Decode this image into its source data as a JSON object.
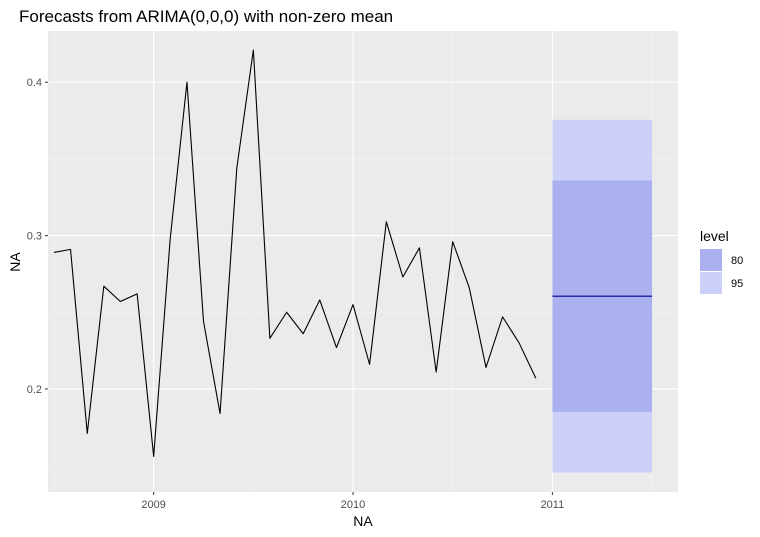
{
  "chart_data": {
    "type": "line",
    "title": "Forecasts from ARIMA(0,0,0) with non-zero mean",
    "xlabel": "NA",
    "ylabel": "NA",
    "xlim": [
      2008.47,
      2011.63
    ],
    "ylim": [
      0.1328,
      0.4334
    ],
    "grid": true,
    "legend_position": "right",
    "x_ticks": [
      2009,
      2010,
      2011
    ],
    "x_tick_labels": [
      "2009",
      "2010",
      "2011"
    ],
    "y_ticks": [
      0.2,
      0.3,
      0.4
    ],
    "y_tick_labels": [
      "0.2",
      "0.3",
      "0.4"
    ],
    "series": [
      {
        "x": [
          2008.5,
          2008.583,
          2008.667,
          2008.75,
          2008.833,
          2008.917,
          2009.0,
          2009.083,
          2009.167,
          2009.25,
          2009.333,
          2009.417,
          2009.5,
          2009.583,
          2009.667,
          2009.75,
          2009.833,
          2009.917,
          2010.0,
          2010.083,
          2010.167,
          2010.25,
          2010.333,
          2010.417,
          2010.5,
          2010.583,
          2010.667,
          2010.75,
          2010.833,
          2010.917
        ],
        "values": [
          0.289,
          0.291,
          0.171,
          0.267,
          0.257,
          0.262,
          0.156,
          0.298,
          0.4,
          0.244,
          0.184,
          0.344,
          0.421,
          0.233,
          0.25,
          0.236,
          0.258,
          0.227,
          0.255,
          0.216,
          0.309,
          0.273,
          0.292,
          0.211,
          0.296,
          0.266,
          0.214,
          0.247,
          0.23,
          0.207
        ],
        "color": "#000000"
      }
    ],
    "forecast": {
      "x_start": 2011.0,
      "x_end": 2011.5,
      "mean": 0.2605,
      "mean_color": "#00008b",
      "intervals": [
        {
          "level": "95",
          "lower": 0.1455,
          "upper": 0.3755,
          "color": "#ccd0f8"
        },
        {
          "level": "80",
          "lower": 0.1851,
          "upper": 0.3359,
          "color": "#abb0ef"
        }
      ]
    },
    "legend": {
      "title": "level",
      "items": [
        {
          "label": "80",
          "color": "#abb0ef"
        },
        {
          "label": "95",
          "color": "#ccd0f8"
        }
      ]
    },
    "colors": {
      "panel_background": "#ebebeb",
      "grid_major": "#ffffff",
      "grid_minor": "#f5f5f5"
    }
  }
}
